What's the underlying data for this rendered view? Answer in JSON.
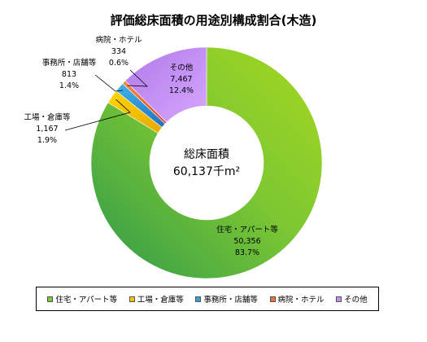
{
  "chart_data": {
    "type": "pie",
    "title": "評価総床面積の用途別構成割合(木造)",
    "center_label": [
      "総床面積",
      "60,137千m²"
    ],
    "unit": "千m²",
    "slices": [
      {
        "name": "住宅・アパート等",
        "value": 50356,
        "value_label": "50,356",
        "percent_label": "83.7%",
        "color": "#7ec832"
      },
      {
        "name": "工場・倉庫等",
        "value": 1167,
        "value_label": "1,167",
        "percent_label": "1.9%",
        "color": "#f5c400"
      },
      {
        "name": "事務所・店舗等",
        "value": 813,
        "value_label": "813",
        "percent_label": "1.4%",
        "color": "#3d9fd8"
      },
      {
        "name": "病院・ホテル",
        "value": 334,
        "value_label": "334",
        "percent_label": "0.6%",
        "color": "#e8743b"
      },
      {
        "name": "その他",
        "value": 7467,
        "value_label": "7,467",
        "percent_label": "12.4%",
        "color": "#c48ef5"
      }
    ],
    "legend_position": "bottom"
  }
}
